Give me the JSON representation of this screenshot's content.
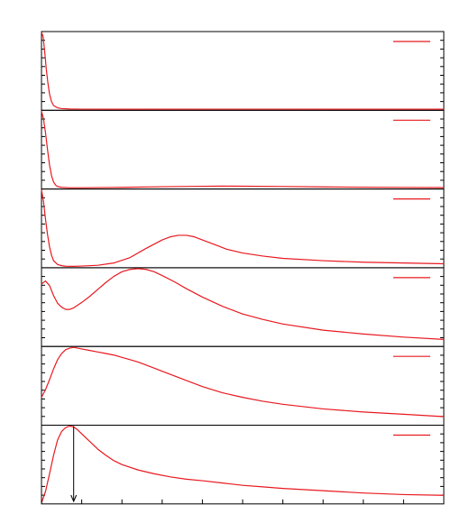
{
  "colors": {
    "frame": "#000000",
    "series": "#e8191f",
    "background": "#ffffff"
  },
  "chart_data": [
    {
      "type": "line",
      "ylim": [
        0,
        1
      ],
      "xlim": [
        0,
        100
      ],
      "legend": "top-right",
      "series": [
        {
          "x": [
            0,
            0.4,
            0.8,
            1.2,
            1.6,
            2.0,
            2.5,
            3,
            4,
            5,
            7,
            10,
            20,
            40,
            60,
            80,
            100
          ],
          "y": [
            1.0,
            0.95,
            0.75,
            0.52,
            0.34,
            0.2,
            0.1,
            0.05,
            0.02,
            0.01,
            0.005,
            0.003,
            0.002,
            0.003,
            0.003,
            0.002,
            0.002
          ]
        }
      ]
    },
    {
      "type": "line",
      "ylim": [
        0,
        1
      ],
      "xlim": [
        0,
        100
      ],
      "legend": "top-right",
      "series": [
        {
          "x": [
            0,
            0.5,
            1,
            1.5,
            2,
            2.5,
            3,
            3.5,
            4,
            5,
            7,
            10,
            20,
            30,
            40,
            45,
            50,
            60,
            70,
            80,
            90,
            100
          ],
          "y": [
            1.0,
            0.9,
            0.72,
            0.5,
            0.3,
            0.16,
            0.08,
            0.04,
            0.02,
            0.01,
            0.005,
            0.005,
            0.01,
            0.018,
            0.024,
            0.026,
            0.025,
            0.021,
            0.016,
            0.012,
            0.009,
            0.007
          ]
        }
      ]
    },
    {
      "type": "line",
      "ylim": [
        0,
        1
      ],
      "xlim": [
        0,
        100
      ],
      "legend": "top-right",
      "series": [
        {
          "x": [
            0,
            0.5,
            1,
            1.5,
            2,
            2.5,
            3,
            4,
            5,
            6,
            8,
            10,
            14,
            18,
            22,
            26,
            30,
            32,
            34,
            36,
            38,
            40,
            42,
            44,
            46,
            50,
            55,
            60,
            70,
            80,
            90,
            100
          ],
          "y": [
            1.0,
            0.85,
            0.62,
            0.42,
            0.26,
            0.15,
            0.08,
            0.03,
            0.015,
            0.008,
            0.006,
            0.01,
            0.02,
            0.05,
            0.12,
            0.24,
            0.35,
            0.39,
            0.41,
            0.41,
            0.39,
            0.35,
            0.31,
            0.27,
            0.23,
            0.18,
            0.14,
            0.11,
            0.08,
            0.06,
            0.05,
            0.04
          ]
        }
      ]
    },
    {
      "type": "line",
      "ylim": [
        0,
        1
      ],
      "xlim": [
        0,
        100
      ],
      "legend": "top-right",
      "series": [
        {
          "x": [
            0,
            1,
            2,
            3,
            4,
            5,
            6,
            7,
            8,
            10,
            12,
            14,
            16,
            18,
            20,
            22,
            24,
            26,
            28,
            30,
            33,
            36,
            40,
            45,
            50,
            55,
            60,
            70,
            80,
            90,
            100
          ],
          "y": [
            0.8,
            0.84,
            0.78,
            0.65,
            0.55,
            0.5,
            0.47,
            0.47,
            0.49,
            0.56,
            0.64,
            0.73,
            0.82,
            0.9,
            0.96,
            0.99,
            1.0,
            0.99,
            0.96,
            0.91,
            0.83,
            0.74,
            0.63,
            0.51,
            0.41,
            0.34,
            0.28,
            0.2,
            0.15,
            0.11,
            0.08
          ]
        }
      ]
    },
    {
      "type": "line",
      "ylim": [
        0,
        1
      ],
      "xlim": [
        0,
        100
      ],
      "legend": "top-right",
      "series": [
        {
          "x": [
            0,
            1,
            2,
            3,
            4,
            5,
            6,
            7,
            8,
            9,
            10,
            12,
            14,
            16,
            18,
            20,
            22,
            24,
            26,
            28,
            30,
            35,
            40,
            45,
            50,
            55,
            60,
            70,
            80,
            90,
            100
          ],
          "y": [
            0.35,
            0.45,
            0.58,
            0.72,
            0.84,
            0.92,
            0.97,
            0.99,
            1.0,
            0.99,
            0.98,
            0.96,
            0.94,
            0.92,
            0.9,
            0.87,
            0.84,
            0.81,
            0.77,
            0.73,
            0.69,
            0.59,
            0.49,
            0.41,
            0.35,
            0.3,
            0.26,
            0.2,
            0.16,
            0.13,
            0.1
          ]
        }
      ]
    },
    {
      "type": "line",
      "ylim": [
        0,
        1
      ],
      "xlim": [
        0,
        100
      ],
      "legend": "top-right",
      "marker_x": 8,
      "series": [
        {
          "x": [
            0,
            1,
            2,
            3,
            4,
            5,
            6,
            7,
            8,
            9,
            10,
            12,
            14,
            16,
            18,
            20,
            24,
            28,
            32,
            36,
            40,
            45,
            50,
            55,
            60,
            70,
            80,
            90,
            100
          ],
          "y": [
            0.0,
            0.15,
            0.38,
            0.62,
            0.82,
            0.93,
            0.98,
            1.0,
            0.99,
            0.95,
            0.9,
            0.8,
            0.7,
            0.62,
            0.55,
            0.5,
            0.43,
            0.38,
            0.34,
            0.31,
            0.29,
            0.26,
            0.23,
            0.21,
            0.19,
            0.16,
            0.13,
            0.11,
            0.1
          ]
        }
      ]
    }
  ]
}
